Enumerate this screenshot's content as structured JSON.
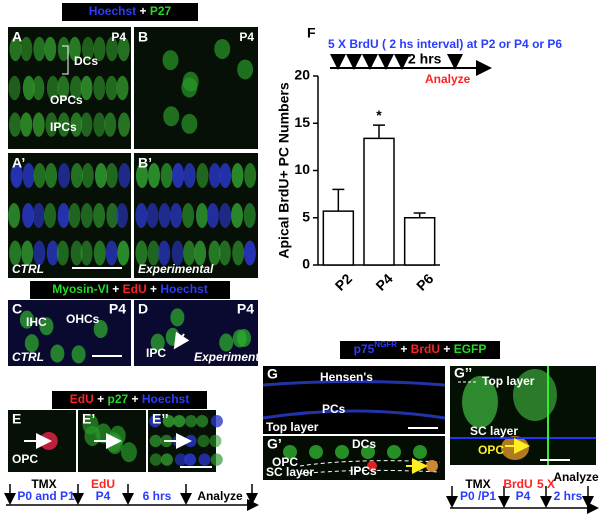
{
  "figure": {
    "header_top": [
      "Hoechst",
      "+",
      "P27"
    ],
    "header_mid": [
      "Myosin-VI",
      "+",
      "EdU",
      "+",
      "Hoechst"
    ],
    "header_low": [
      "EdU",
      "+",
      "p27",
      "+",
      "Hoechst"
    ],
    "header_right": [
      "p75",
      "NGFR",
      "+",
      "BrdU",
      "+",
      "EGFP"
    ],
    "panels": {
      "A": {
        "letter": "A",
        "stage": "P4",
        "labels": [
          "DCs",
          "OPCs",
          "IPCs"
        ]
      },
      "B": {
        "letter": "B",
        "stage": "P4"
      },
      "A2": {
        "letter": "A’",
        "condition": "CTRL"
      },
      "B2": {
        "letter": "B’",
        "condition": "Experimental"
      },
      "C": {
        "letter": "C",
        "stage": "P4",
        "labels": [
          "IHC",
          "OHCs"
        ],
        "condition": "CTRL"
      },
      "D": {
        "letter": "D",
        "stage": "P4",
        "labels": [
          "IPC"
        ],
        "condition": "Experimental"
      },
      "E": {
        "letter": "E",
        "labels": [
          "OPC"
        ]
      },
      "E2": {
        "letter": "E’"
      },
      "E3": {
        "letter": "E’’"
      },
      "G": {
        "letter": "G",
        "labels": [
          "Hensen's",
          "PCs",
          "Top layer"
        ]
      },
      "G2": {
        "letter": "G’",
        "labels": [
          "DCs",
          "OPC",
          "IPCs",
          "SC layer"
        ]
      },
      "G3": {
        "letter": "G’’",
        "labels": [
          "Top layer",
          "SC layer",
          "OPC"
        ]
      }
    },
    "timeline_left": [
      "TMX",
      "P0 and P1",
      "EdU",
      "P4",
      "6 hrs",
      "Analyze"
    ],
    "timeline_right": [
      "TMX",
      "P0 /P1",
      "BrdU",
      "5 X",
      "P4",
      "2 hrs",
      "Analyze"
    ]
  },
  "chart_data": {
    "type": "bar",
    "letter": "F",
    "title": "5 X BrdU ( 2 hs interval) at P2 or P4 or P6",
    "timeline_labels": [
      "2 hrs",
      "Analyze"
    ],
    "y_label": "Apical BrdU+ PC Numbers",
    "categories": [
      "P2",
      "P4",
      "P6"
    ],
    "values": [
      5.7,
      13.4,
      5.0
    ],
    "errors": [
      2.3,
      1.4,
      0.5
    ],
    "annotations": [
      {
        "category": 1,
        "text": "*"
      }
    ],
    "ylim": [
      0,
      20
    ],
    "yticks": [
      0,
      5,
      10,
      15,
      20
    ],
    "color": "#ffffff"
  }
}
